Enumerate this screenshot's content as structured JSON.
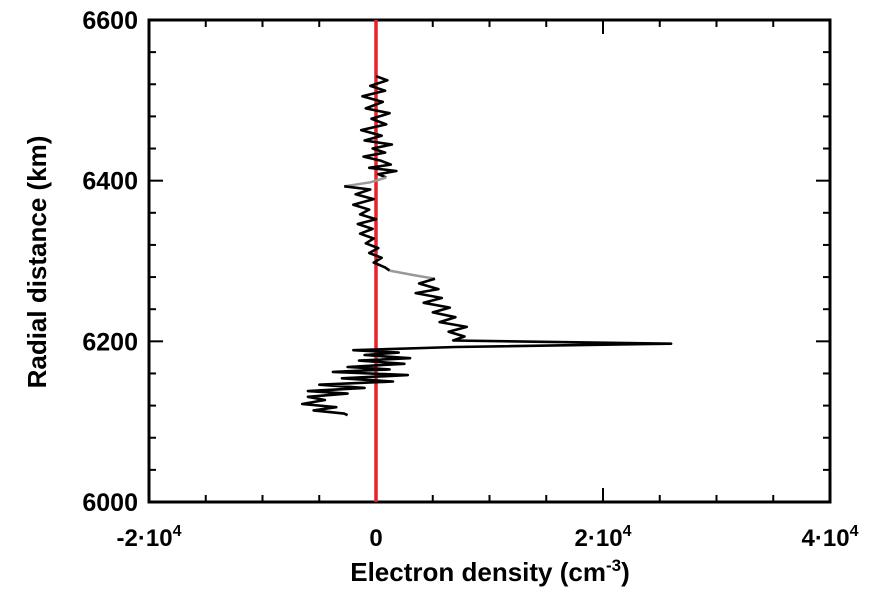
{
  "chart_data": {
    "type": "line",
    "title": "",
    "xlabel_main": "Electron density (cm",
    "xlabel_sup": "-3",
    "xlabel_end": ")",
    "ylabel": "Radial distance (km)",
    "xlim": [
      -20000,
      40000
    ],
    "ylim": [
      6000,
      6600
    ],
    "grid": false,
    "x_ticks": [
      {
        "value": -20000,
        "base": "-2·10",
        "exp": "4"
      },
      {
        "value": 0,
        "base": "0",
        "exp": ""
      },
      {
        "value": 20000,
        "base": "2·10",
        "exp": "4"
      },
      {
        "value": 40000,
        "base": "4·10",
        "exp": "4"
      }
    ],
    "y_ticks": [
      {
        "value": 6000,
        "label": "6000"
      },
      {
        "value": 6200,
        "label": "6200"
      },
      {
        "value": 6400,
        "label": "6400"
      },
      {
        "value": 6600,
        "label": "6600"
      }
    ],
    "reference_line": {
      "x": 0,
      "color": "#e8202a"
    },
    "colors": {
      "profile": "#000000",
      "interpolated": "#999999",
      "axes": "#000000"
    },
    "profile_segments": [
      {
        "style": "measured",
        "points": [
          [
            0,
            6530
          ],
          [
            1000,
            6525
          ],
          [
            -500,
            6518
          ],
          [
            800,
            6512
          ],
          [
            -1200,
            6505
          ],
          [
            600,
            6498
          ],
          [
            -900,
            6490
          ],
          [
            1200,
            6484
          ],
          [
            -400,
            6477
          ],
          [
            900,
            6470
          ],
          [
            -1300,
            6463
          ],
          [
            500,
            6456
          ],
          [
            -1000,
            6450
          ],
          [
            1400,
            6445
          ],
          [
            -300,
            6440
          ],
          [
            800,
            6435
          ],
          [
            -1100,
            6430
          ],
          [
            400,
            6425
          ],
          [
            1300,
            6420
          ],
          [
            -600,
            6416
          ],
          [
            1800,
            6412
          ],
          [
            200,
            6408
          ],
          [
            900,
            6404
          ]
        ]
      },
      {
        "style": "interpolated",
        "points": [
          [
            900,
            6404
          ],
          [
            -500,
            6398
          ],
          [
            -2800,
            6393
          ]
        ]
      },
      {
        "style": "measured",
        "points": [
          [
            -2800,
            6393
          ],
          [
            -500,
            6389
          ],
          [
            -1800,
            6383
          ],
          [
            -200,
            6377
          ],
          [
            -2000,
            6370
          ],
          [
            -600,
            6364
          ],
          [
            -1400,
            6358
          ],
          [
            0,
            6352
          ],
          [
            -1600,
            6346
          ],
          [
            -300,
            6340
          ],
          [
            -1400,
            6334
          ],
          [
            -200,
            6328
          ],
          [
            -900,
            6322
          ],
          [
            200,
            6316
          ],
          [
            -600,
            6310
          ],
          [
            500,
            6304
          ],
          [
            -200,
            6298
          ],
          [
            800,
            6292
          ],
          [
            1200,
            6288
          ]
        ]
      },
      {
        "style": "interpolated",
        "points": [
          [
            1200,
            6288
          ],
          [
            3500,
            6282
          ],
          [
            5200,
            6278
          ]
        ]
      },
      {
        "style": "measured",
        "points": [
          [
            5200,
            6278
          ],
          [
            3800,
            6272
          ],
          [
            5500,
            6265
          ],
          [
            3500,
            6260
          ],
          [
            5800,
            6254
          ],
          [
            4200,
            6248
          ],
          [
            6500,
            6242
          ],
          [
            5000,
            6236
          ],
          [
            7000,
            6230
          ],
          [
            5600,
            6224
          ],
          [
            8000,
            6218
          ],
          [
            6400,
            6212
          ],
          [
            7800,
            6206
          ],
          [
            6800,
            6201
          ],
          [
            26000,
            6197
          ],
          [
            7000,
            6193
          ],
          [
            -2000,
            6189
          ],
          [
            2000,
            6186
          ],
          [
            -1000,
            6183
          ],
          [
            3000,
            6179
          ],
          [
            -1500,
            6176
          ],
          [
            2500,
            6172
          ],
          [
            -2500,
            6168
          ],
          [
            1200,
            6165
          ],
          [
            -3800,
            6162
          ],
          [
            2800,
            6158
          ],
          [
            -3000,
            6154
          ],
          [
            1500,
            6150
          ],
          [
            -5000,
            6146
          ],
          [
            -1000,
            6142
          ],
          [
            -6000,
            6138
          ],
          [
            -2500,
            6135
          ],
          [
            -6000,
            6131
          ],
          [
            -4500,
            6127
          ],
          [
            -6500,
            6122
          ],
          [
            -3500,
            6118
          ],
          [
            -5500,
            6114
          ],
          [
            -2800,
            6110
          ],
          [
            -2500,
            6108
          ]
        ]
      }
    ]
  }
}
